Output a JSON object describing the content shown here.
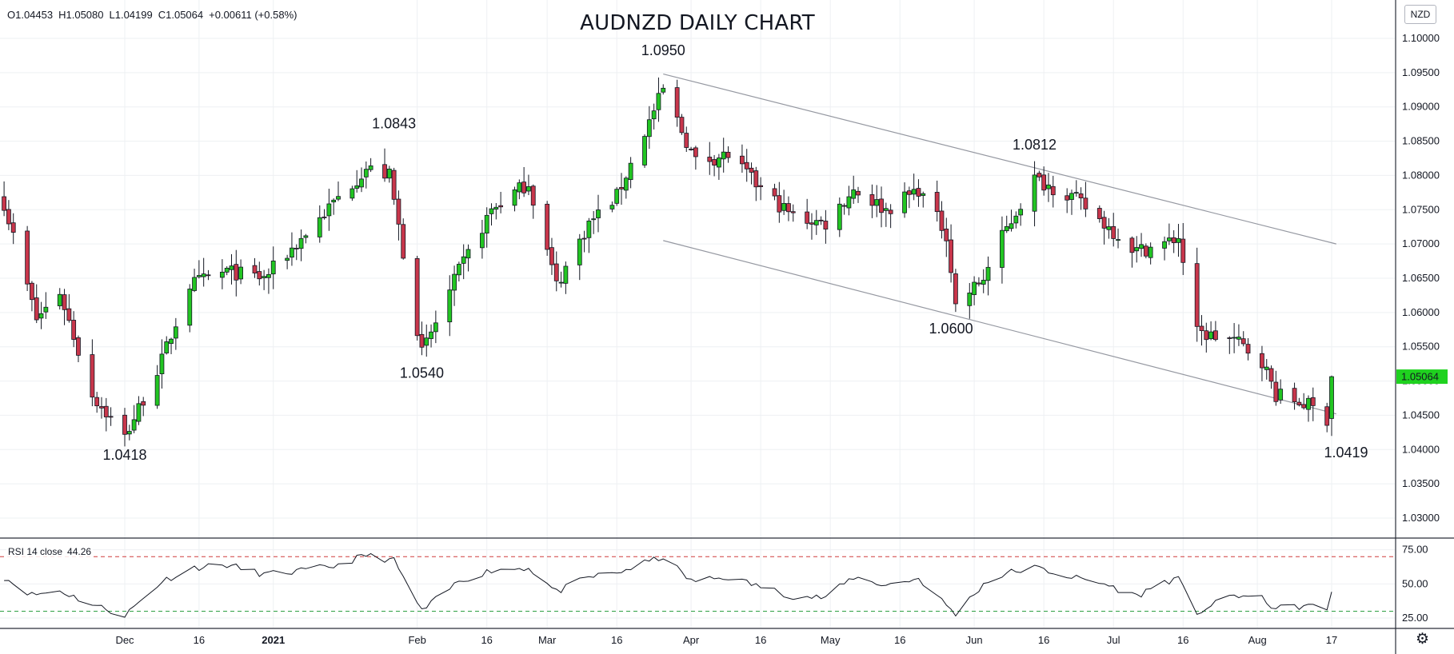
{
  "header": {
    "ohlc": {
      "o": "O1.04453",
      "h": "H1.05080",
      "l": "L1.04199",
      "c": "C1.05064",
      "chg": "+0.00611 (+0.58%)"
    },
    "title": "AUDNZD DAILY CHART",
    "currency": "NZD"
  },
  "rsi_panel": {
    "label": "RSI 14 close",
    "value": "44.26"
  },
  "colors": {
    "up": "#22c522",
    "down": "#c8364b",
    "grid": "#eef0f3",
    "rsi_upper": "#d03a3a",
    "rsi_lower": "#2ea043",
    "current_price": "#1fd21f"
  },
  "chart_data": [
    {
      "type": "candlestick",
      "title": "AUDNZD DAILY CHART",
      "symbol": "AUDNZD",
      "timeframe": "Daily",
      "xlabel": "",
      "ylabel": "",
      "x_tick_labels": [
        "Dec",
        "16",
        "2021",
        "Feb",
        "16",
        "Mar",
        "16",
        "Apr",
        "16",
        "May",
        "16",
        "Jun",
        "16",
        "Jul",
        "16",
        "Aug",
        "17"
      ],
      "y_tick_labels": [
        "1.03000",
        "1.03500",
        "1.04000",
        "1.04500",
        "1.05000",
        "1.05500",
        "1.06000",
        "1.06500",
        "1.07000",
        "1.07500",
        "1.08000",
        "1.08500",
        "1.09000",
        "1.09500",
        "1.10000"
      ],
      "ylim": [
        1.0272,
        1.1056
      ],
      "last_price": "1.05064",
      "annotations": [
        {
          "text": "1.0418",
          "date": "2020-11-30",
          "price": 1.0418
        },
        {
          "text": "1.0843",
          "date": "2021-01-27",
          "price": 1.0843
        },
        {
          "text": "1.0540",
          "date": "2021-02-02",
          "price": 1.054
        },
        {
          "text": "1.0950",
          "date": "2021-03-26",
          "price": 1.095
        },
        {
          "text": "1.0812",
          "date": "2021-06-14",
          "price": 1.0812
        },
        {
          "text": "1.0600",
          "date": "2021-05-27",
          "price": 1.06
        },
        {
          "text": "1.0419",
          "date": "2021-08-17",
          "price": 1.0419
        }
      ],
      "trendlines": [
        {
          "from": {
            "date": "2021-03-26",
            "price": 1.0948
          },
          "to": {
            "date": "2021-08-18",
            "price": 1.07
          }
        },
        {
          "from": {
            "date": "2021-03-26",
            "price": 1.0705
          },
          "to": {
            "date": "2021-08-18",
            "price": 1.0452
          }
        }
      ],
      "pivots": [
        [
          "2020-11-04",
          1.076
        ],
        [
          "2020-11-11",
          1.059
        ],
        [
          "2020-11-16",
          1.063
        ],
        [
          "2020-11-23",
          1.048
        ],
        [
          "2020-11-30",
          1.0418
        ],
        [
          "2020-12-08",
          1.053
        ],
        [
          "2020-12-14",
          1.064
        ],
        [
          "2020-12-22",
          1.066
        ],
        [
          "2020-12-30",
          1.065
        ],
        [
          "2021-01-06",
          1.07
        ],
        [
          "2021-01-14",
          1.076
        ],
        [
          "2021-01-21",
          1.081
        ],
        [
          "2021-01-26",
          1.08
        ],
        [
          "2021-02-02",
          1.054
        ],
        [
          "2021-02-10",
          1.066
        ],
        [
          "2021-02-17",
          1.075
        ],
        [
          "2021-02-25",
          1.079
        ],
        [
          "2021-03-03",
          1.064
        ],
        [
          "2021-03-10",
          1.073
        ],
        [
          "2021-03-16",
          1.077
        ],
        [
          "2021-03-26",
          1.0925
        ],
        [
          "2021-04-02",
          1.082
        ],
        [
          "2021-04-09",
          1.083
        ],
        [
          "2021-04-16",
          1.078
        ],
        [
          "2021-04-23",
          1.074
        ],
        [
          "2021-04-30",
          1.073
        ],
        [
          "2021-05-06",
          1.078
        ],
        [
          "2021-05-13",
          1.075
        ],
        [
          "2021-05-20",
          1.078
        ],
        [
          "2021-05-26",
          1.0715
        ],
        [
          "2021-05-28",
          1.061
        ],
        [
          "2021-06-03",
          1.065
        ],
        [
          "2021-06-07",
          1.071
        ],
        [
          "2021-06-14",
          1.0795
        ],
        [
          "2021-06-22",
          1.077
        ],
        [
          "2021-06-29",
          1.073
        ],
        [
          "2021-07-06",
          1.069
        ],
        [
          "2021-07-12",
          1.07
        ],
        [
          "2021-07-15",
          1.071
        ],
        [
          "2021-07-19",
          1.057
        ],
        [
          "2021-07-27",
          1.056
        ],
        [
          "2021-08-02",
          1.053
        ],
        [
          "2021-08-05",
          1.048
        ],
        [
          "2021-08-12",
          1.0465
        ],
        [
          "2021-08-16",
          1.0445
        ],
        [
          "2021-08-17",
          1.05064
        ]
      ]
    },
    {
      "type": "line",
      "title": "",
      "series": [
        {
          "name": "RSI 14 close"
        }
      ],
      "ylim": [
        18,
        83
      ],
      "y_tick_labels": [
        "25.00",
        "50.00",
        "75.00"
      ],
      "levels": [
        70,
        30
      ],
      "last_value": 44.26,
      "x_tick_labels": [
        "Dec",
        "16",
        "2021",
        "Feb",
        "16",
        "Mar",
        "16",
        "Apr",
        "16",
        "May",
        "16",
        "Jun",
        "16",
        "Jul",
        "16",
        "Aug",
        "17"
      ],
      "pivots": [
        [
          "2020-11-04",
          55
        ],
        [
          "2020-11-10",
          42
        ],
        [
          "2020-11-16",
          45
        ],
        [
          "2020-11-23",
          35
        ],
        [
          "2020-11-30",
          27
        ],
        [
          "2020-12-08",
          52
        ],
        [
          "2020-12-15",
          62
        ],
        [
          "2020-12-22",
          64
        ],
        [
          "2020-12-30",
          57
        ],
        [
          "2021-01-06",
          59
        ],
        [
          "2021-01-14",
          63
        ],
        [
          "2021-01-21",
          71
        ],
        [
          "2021-01-27",
          67
        ],
        [
          "2021-02-02",
          30
        ],
        [
          "2021-02-10",
          52
        ],
        [
          "2021-02-17",
          60
        ],
        [
          "2021-02-25",
          62
        ],
        [
          "2021-03-03",
          44
        ],
        [
          "2021-03-10",
          55
        ],
        [
          "2021-03-16",
          58
        ],
        [
          "2021-03-26",
          70
        ],
        [
          "2021-04-01",
          52
        ],
        [
          "2021-04-09",
          55
        ],
        [
          "2021-04-16",
          48
        ],
        [
          "2021-04-23",
          41
        ],
        [
          "2021-04-30",
          40
        ],
        [
          "2021-05-06",
          55
        ],
        [
          "2021-05-13",
          49
        ],
        [
          "2021-05-20",
          54
        ],
        [
          "2021-05-28",
          28
        ],
        [
          "2021-06-03",
          50
        ],
        [
          "2021-06-08",
          58
        ],
        [
          "2021-06-14",
          62
        ],
        [
          "2021-06-22",
          55
        ],
        [
          "2021-06-29",
          50
        ],
        [
          "2021-07-06",
          41
        ],
        [
          "2021-07-12",
          52
        ],
        [
          "2021-07-15",
          53
        ],
        [
          "2021-07-19",
          29
        ],
        [
          "2021-07-27",
          42
        ],
        [
          "2021-08-02",
          39
        ],
        [
          "2021-08-05",
          32
        ],
        [
          "2021-08-12",
          34
        ],
        [
          "2021-08-16",
          31
        ],
        [
          "2021-08-17",
          44.26
        ]
      ]
    }
  ]
}
